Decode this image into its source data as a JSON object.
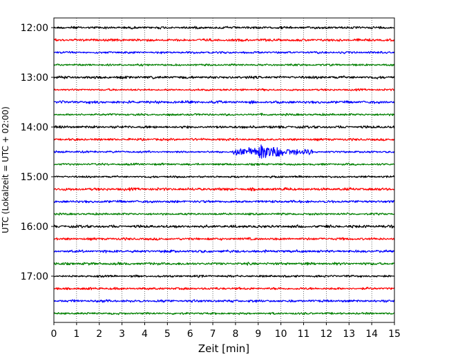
{
  "chart_data": {
    "type": "line",
    "title": "",
    "xlabel": "Zeit  [min]",
    "ylabel": "UTC (Lokalzeit = UTC + 02:00)",
    "xlim": [
      0,
      15
    ],
    "x_ticks": [
      "0",
      "1",
      "2",
      "3",
      "4",
      "5",
      "6",
      "7",
      "8",
      "9",
      "10",
      "11",
      "12",
      "13",
      "14",
      "15"
    ],
    "y_tick_labels": [
      "12:00",
      "13:00",
      "14:00",
      "15:00",
      "16:00",
      "17:00"
    ],
    "grid_vertical": true,
    "trace_start": "12:00",
    "trace_interval_min": 15,
    "trace_count": 24,
    "color_cycle": [
      "#000000",
      "#ff0000",
      "#0000ff",
      "#008000"
    ],
    "events": [
      {
        "trace_time": "14:30",
        "start_min": 7.9,
        "peak_min": 9.1,
        "end_min": 11.4
      }
    ]
  }
}
